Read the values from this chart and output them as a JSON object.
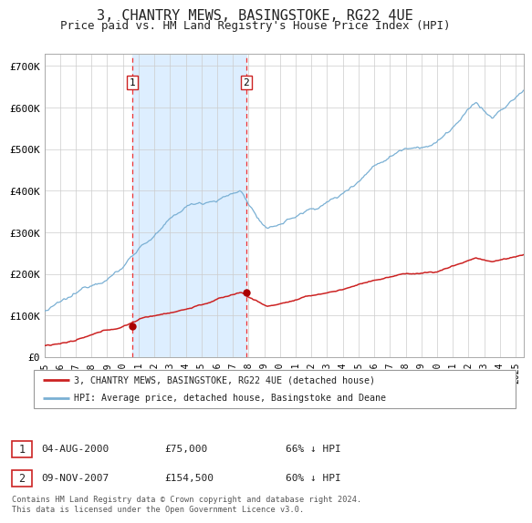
{
  "title": "3, CHANTRY MEWS, BASINGSTOKE, RG22 4UE",
  "subtitle": "Price paid vs. HM Land Registry's House Price Index (HPI)",
  "title_fontsize": 11,
  "subtitle_fontsize": 9,
  "ylabel_ticks": [
    "£0",
    "£100K",
    "£200K",
    "£300K",
    "£400K",
    "£500K",
    "£600K",
    "£700K"
  ],
  "ytick_values": [
    0,
    100000,
    200000,
    300000,
    400000,
    500000,
    600000,
    700000
  ],
  "ylim": [
    0,
    730000
  ],
  "xlim_start": 1995.0,
  "xlim_end": 2025.5,
  "background_color": "#ffffff",
  "plot_bg_color": "#ffffff",
  "grid_color": "#cccccc",
  "hpi_line_color": "#7ab0d4",
  "price_line_color": "#cc2222",
  "shade_color": "#ddeeff",
  "dashed_line_color": "#ee3333",
  "marker_color": "#aa0000",
  "annotation1_year": 2000.59,
  "annotation1_price": 75000,
  "annotation2_year": 2007.86,
  "annotation2_price": 154500,
  "legend_line1": "3, CHANTRY MEWS, BASINGSTOKE, RG22 4UE (detached house)",
  "legend_line2": "HPI: Average price, detached house, Basingstoke and Deane",
  "table_row1": [
    "1",
    "04-AUG-2000",
    "£75,000",
    "66% ↓ HPI"
  ],
  "table_row2": [
    "2",
    "09-NOV-2007",
    "£154,500",
    "60% ↓ HPI"
  ],
  "footer": "Contains HM Land Registry data © Crown copyright and database right 2024.\nThis data is licensed under the Open Government Licence v3.0.",
  "font_family": "DejaVu Sans Mono"
}
